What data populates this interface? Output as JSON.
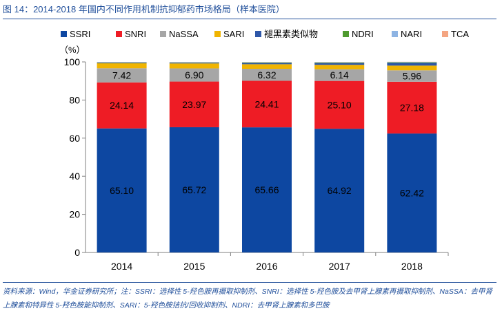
{
  "figure": {
    "title": "图 14：2014-2018 年国内不同作用机制抗抑郁药市场格局（样本医院）",
    "source_note": "资料来源：Wind，华金证券研究所；注：SSRI：选择性 5-羟色胺再摄取抑制剂、SNRI：选择性 5-羟色胺及去甲肾上腺素再摄取抑制剂、NaSSA：去甲肾上腺素和特异性 5-羟色胺能抑制剂、SARI：5-羟色胺拮抗/回收抑制剂、NDRI：去甲肾上腺素和多巴胺"
  },
  "chart_data": {
    "type": "bar",
    "stacked": true,
    "categories": [
      "2014",
      "2015",
      "2016",
      "2017",
      "2018"
    ],
    "ylabel": "（%）",
    "ylim": [
      0,
      100
    ],
    "yticks": [
      "0",
      "20",
      "40",
      "60",
      "80",
      "100"
    ],
    "legend_position": "top",
    "grid": false,
    "series": [
      {
        "name": "SSRI",
        "color": "#0d47a1",
        "values": [
          65.1,
          65.72,
          65.66,
          64.92,
          62.42
        ],
        "labels": [
          "65.10",
          "65.72",
          "65.66",
          "64.92",
          "62.42"
        ]
      },
      {
        "name": "SNRI",
        "color": "#ee1c25",
        "values": [
          24.14,
          23.97,
          24.41,
          25.1,
          27.18
        ],
        "labels": [
          "24.14",
          "23.97",
          "24.41",
          "25.10",
          "27.18"
        ]
      },
      {
        "name": "NaSSA",
        "color": "#a6a6a6",
        "values": [
          7.42,
          6.9,
          6.32,
          6.14,
          5.96
        ],
        "labels": [
          "7.42",
          "6.90",
          "6.32",
          "6.14",
          "5.96"
        ]
      },
      {
        "name": "SARI",
        "color": "#f0b400",
        "values": [
          2.6,
          2.6,
          2.4,
          2.3,
          2.5
        ]
      },
      {
        "name": "褪黑素类似物",
        "color": "#2e57a8",
        "values": [
          0.2,
          0.3,
          0.6,
          0.9,
          1.4
        ]
      },
      {
        "name": "NDRI",
        "color": "#4e9a2e",
        "values": [
          0.2,
          0.2,
          0.3,
          0.3,
          0.3
        ]
      },
      {
        "name": "NARI",
        "color": "#8eb4e3",
        "values": [
          0.2,
          0.2,
          0.2,
          0.2,
          0.2
        ]
      },
      {
        "name": "TCA",
        "color": "#f4a582",
        "values": [
          0.1,
          0.1,
          0.1,
          0.1,
          0.1
        ]
      }
    ]
  }
}
